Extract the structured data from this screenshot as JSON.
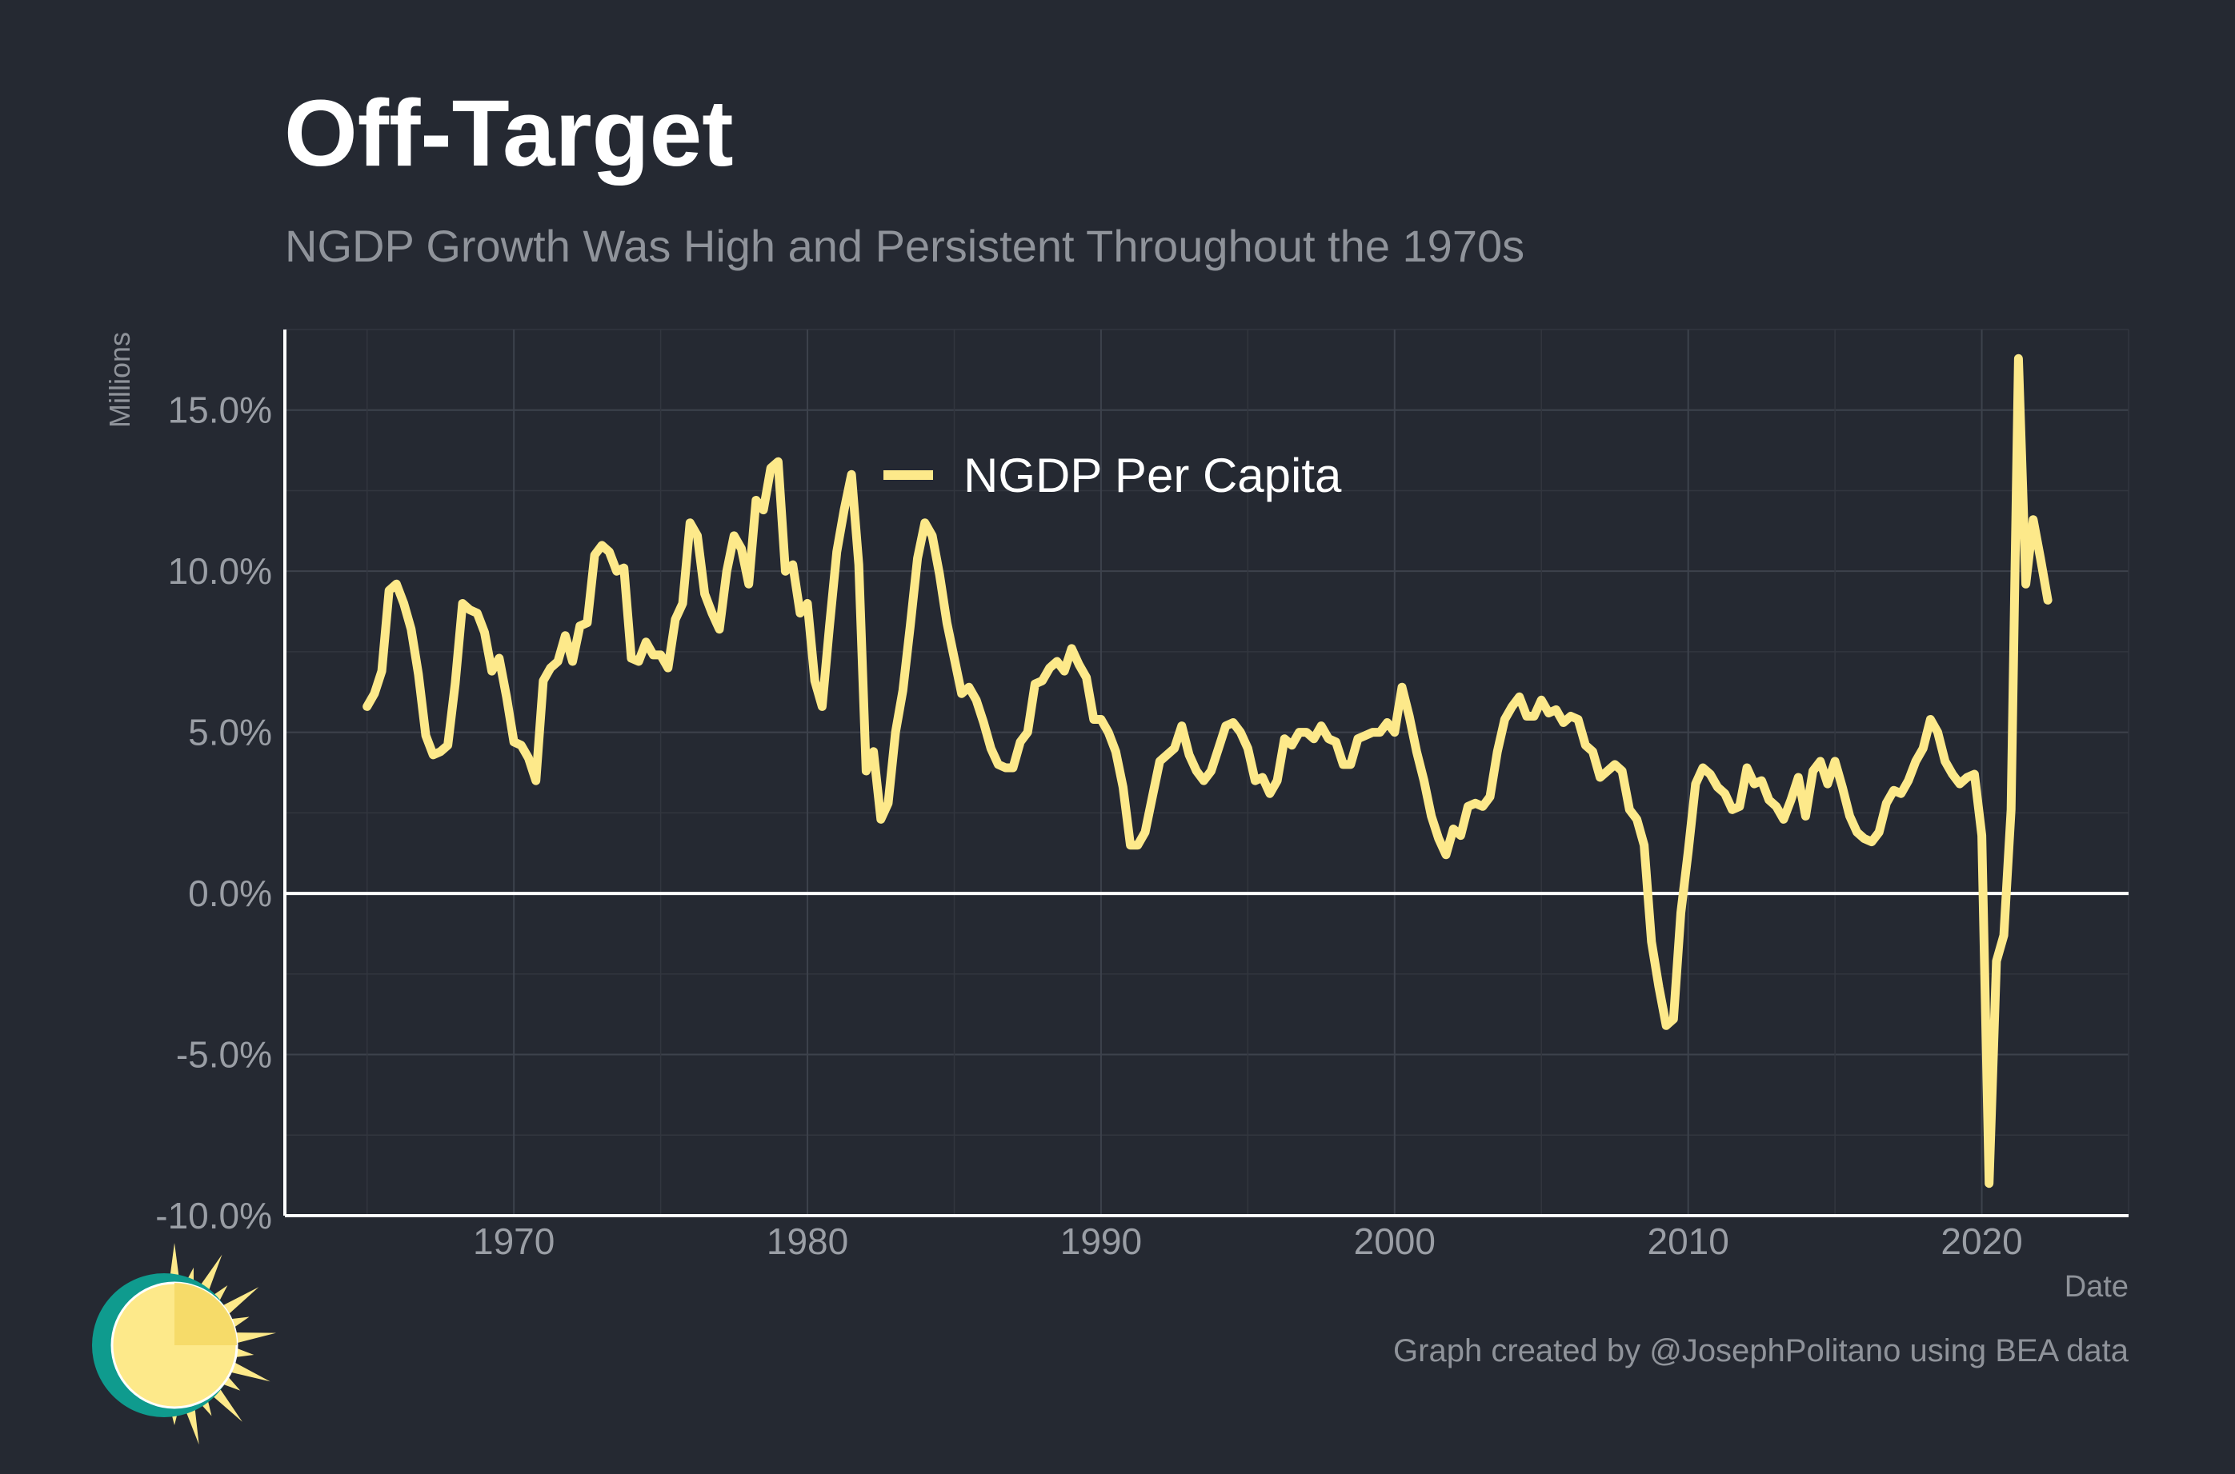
{
  "chart_data": {
    "type": "line",
    "title": "Off-Target",
    "subtitle": "NGDP Growth Was High and Persistent Throughout the 1970s",
    "xlabel": "Date",
    "ylabel": "Millions",
    "caption": "Graph created by @JosephPolitano using BEA data",
    "xlim": [
      1962.2,
      2025.0
    ],
    "ylim": [
      -10,
      17.5
    ],
    "x_ticks": [
      1970,
      1980,
      1990,
      2000,
      2010,
      2020
    ],
    "x_tick_labels": [
      "1970",
      "1980",
      "1990",
      "2000",
      "2010",
      "2020"
    ],
    "y_ticks": [
      -10,
      -5,
      0,
      5,
      10,
      15
    ],
    "y_tick_labels": [
      "-10.0%",
      "-5.0%",
      "0.0%",
      "5.0%",
      "10.0%",
      "15.0%"
    ],
    "grid": true,
    "legend_position": "top-center",
    "series": [
      {
        "name": "NGDP Per Capita",
        "color": "#fde98a",
        "x": [
          1965.0,
          1965.25,
          1965.5,
          1965.75,
          1966.0,
          1966.25,
          1966.5,
          1966.75,
          1967.0,
          1967.25,
          1967.5,
          1967.75,
          1968.0,
          1968.25,
          1968.5,
          1968.75,
          1969.0,
          1969.25,
          1969.5,
          1969.75,
          1970.0,
          1970.25,
          1970.5,
          1970.75,
          1971.0,
          1971.25,
          1971.5,
          1971.75,
          1972.0,
          1972.25,
          1972.5,
          1972.75,
          1973.0,
          1973.25,
          1973.5,
          1973.75,
          1974.0,
          1974.25,
          1974.5,
          1974.75,
          1975.0,
          1975.25,
          1975.5,
          1975.75,
          1976.0,
          1976.25,
          1976.5,
          1976.75,
          1977.0,
          1977.25,
          1977.5,
          1977.75,
          1978.0,
          1978.25,
          1978.5,
          1978.75,
          1979.0,
          1979.25,
          1979.5,
          1979.75,
          1980.0,
          1980.25,
          1980.5,
          1980.75,
          1981.0,
          1981.25,
          1981.5,
          1981.75,
          1982.0,
          1982.25,
          1982.5,
          1982.75,
          1983.0,
          1983.25,
          1983.5,
          1983.75,
          1984.0,
          1984.25,
          1984.5,
          1984.75,
          1985.0,
          1985.25,
          1985.5,
          1985.75,
          1986.0,
          1986.25,
          1986.5,
          1986.75,
          1987.0,
          1987.25,
          1987.5,
          1987.75,
          1988.0,
          1988.25,
          1988.5,
          1988.75,
          1989.0,
          1989.25,
          1989.5,
          1989.75,
          1990.0,
          1990.25,
          1990.5,
          1990.75,
          1991.0,
          1991.25,
          1991.5,
          1991.75,
          1992.0,
          1992.25,
          1992.5,
          1992.75,
          1993.0,
          1993.25,
          1993.5,
          1993.75,
          1994.0,
          1994.25,
          1994.5,
          1994.75,
          1995.0,
          1995.25,
          1995.5,
          1995.75,
          1996.0,
          1996.25,
          1996.5,
          1996.75,
          1997.0,
          1997.25,
          1997.5,
          1997.75,
          1998.0,
          1998.25,
          1998.5,
          1998.75,
          1999.0,
          1999.25,
          1999.5,
          1999.75,
          2000.0,
          2000.25,
          2000.5,
          2000.75,
          2001.0,
          2001.25,
          2001.5,
          2001.75,
          2002.0,
          2002.25,
          2002.5,
          2002.75,
          2003.0,
          2003.25,
          2003.5,
          2003.75,
          2004.0,
          2004.25,
          2004.5,
          2004.75,
          2005.0,
          2005.25,
          2005.5,
          2005.75,
          2006.0,
          2006.25,
          2006.5,
          2006.75,
          2007.0,
          2007.25,
          2007.5,
          2007.75,
          2008.0,
          2008.25,
          2008.5,
          2008.75,
          2009.0,
          2009.25,
          2009.5,
          2009.75,
          2010.0,
          2010.25,
          2010.5,
          2010.75,
          2011.0,
          2011.25,
          2011.5,
          2011.75,
          2012.0,
          2012.25,
          2012.5,
          2012.75,
          2013.0,
          2013.25,
          2013.5,
          2013.75,
          2014.0,
          2014.25,
          2014.5,
          2014.75,
          2015.0,
          2015.25,
          2015.5,
          2015.75,
          2016.0,
          2016.25,
          2016.5,
          2016.75,
          2017.0,
          2017.25,
          2017.5,
          2017.75,
          2018.0,
          2018.25,
          2018.5,
          2018.75,
          2019.0,
          2019.25,
          2019.5,
          2019.75,
          2020.0,
          2020.25,
          2020.5,
          2020.75,
          2021.0,
          2021.25,
          2021.5,
          2021.75,
          2022.0,
          2022.25
        ],
        "y": [
          5.8,
          6.2,
          6.9,
          9.4,
          9.6,
          9.0,
          8.2,
          6.8,
          4.9,
          4.3,
          4.4,
          4.6,
          6.5,
          9.0,
          8.8,
          8.7,
          8.1,
          6.9,
          7.3,
          6.1,
          4.7,
          4.6,
          4.2,
          3.5,
          6.6,
          7.0,
          7.2,
          8.0,
          7.2,
          8.3,
          8.4,
          10.5,
          10.8,
          10.6,
          10.0,
          10.1,
          7.3,
          7.2,
          7.8,
          7.4,
          7.4,
          7.0,
          8.5,
          9.0,
          11.5,
          11.1,
          9.3,
          8.7,
          8.2,
          10.0,
          11.1,
          10.7,
          9.6,
          12.2,
          11.9,
          13.2,
          13.4,
          10.0,
          10.2,
          8.7,
          9.0,
          6.6,
          5.8,
          8.3,
          10.6,
          11.9,
          13.0,
          10.2,
          3.8,
          4.4,
          2.3,
          2.8,
          5.0,
          6.3,
          8.3,
          10.4,
          11.5,
          11.1,
          9.9,
          8.4,
          7.3,
          6.2,
          6.4,
          6.0,
          5.3,
          4.5,
          4.0,
          3.9,
          3.9,
          4.7,
          5.0,
          6.5,
          6.6,
          7.0,
          7.2,
          6.9,
          7.6,
          7.1,
          6.7,
          5.4,
          5.4,
          5.0,
          4.4,
          3.3,
          1.5,
          1.5,
          1.9,
          3.0,
          4.1,
          4.3,
          4.5,
          5.2,
          4.3,
          3.8,
          3.5,
          3.8,
          4.5,
          5.2,
          5.3,
          5.0,
          4.5,
          3.5,
          3.6,
          3.1,
          3.5,
          4.8,
          4.6,
          5.0,
          5.0,
          4.8,
          5.2,
          4.8,
          4.7,
          4.0,
          4.0,
          4.8,
          4.9,
          5.0,
          5.0,
          5.3,
          5.0,
          6.4,
          5.5,
          4.4,
          3.5,
          2.4,
          1.7,
          1.2,
          2.0,
          1.8,
          2.7,
          2.8,
          2.7,
          3.0,
          4.4,
          5.4,
          5.8,
          6.1,
          5.5,
          5.5,
          6.0,
          5.6,
          5.7,
          5.3,
          5.5,
          5.4,
          4.6,
          4.4,
          3.6,
          3.8,
          4.0,
          3.8,
          2.6,
          2.3,
          1.5,
          -1.5,
          -2.9,
          -4.1,
          -3.9,
          -0.6,
          1.3,
          3.4,
          3.9,
          3.7,
          3.3,
          3.1,
          2.6,
          2.7,
          3.9,
          3.4,
          3.5,
          2.9,
          2.7,
          2.3,
          2.9,
          3.6,
          2.4,
          3.8,
          4.1,
          3.4,
          4.1,
          3.3,
          2.4,
          1.9,
          1.7,
          1.6,
          1.9,
          2.8,
          3.2,
          3.1,
          3.5,
          4.1,
          4.5,
          5.4,
          5.0,
          4.1,
          3.7,
          3.4,
          3.6,
          3.7,
          1.8,
          -9.0,
          -2.1,
          -1.3,
          2.6,
          16.6,
          9.6,
          11.6,
          10.4,
          9.1
        ]
      }
    ]
  }
}
